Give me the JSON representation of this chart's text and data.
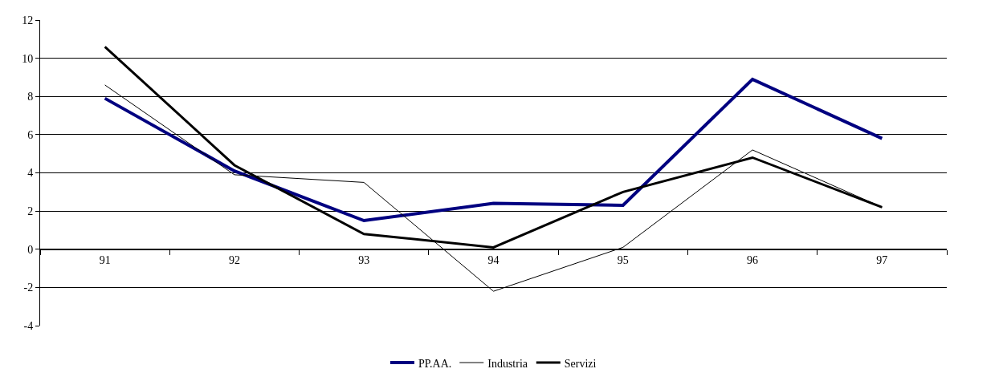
{
  "chart_data": {
    "type": "line",
    "categories": [
      "91",
      "92",
      "93",
      "94",
      "95",
      "96",
      "97"
    ],
    "series": [
      {
        "name": "PP.AA.",
        "color": "#000080",
        "values": [
          7.9,
          4.1,
          1.5,
          2.4,
          2.3,
          8.9,
          5.8
        ]
      },
      {
        "name": "Industria",
        "color": "#000000",
        "values": [
          8.6,
          3.9,
          3.5,
          -2.2,
          0.1,
          5.2,
          2.2
        ]
      },
      {
        "name": "Servizi",
        "color": "#000000",
        "values": [
          10.6,
          4.4,
          0.8,
          0.1,
          3.0,
          4.8,
          2.2
        ]
      }
    ],
    "ylim": [
      -4,
      12
    ],
    "yticks": [
      -4,
      -2,
      0,
      2,
      4,
      6,
      8,
      10,
      12
    ],
    "grid": "y",
    "legend": "bottom",
    "marker": "none",
    "line_style": "solid"
  }
}
